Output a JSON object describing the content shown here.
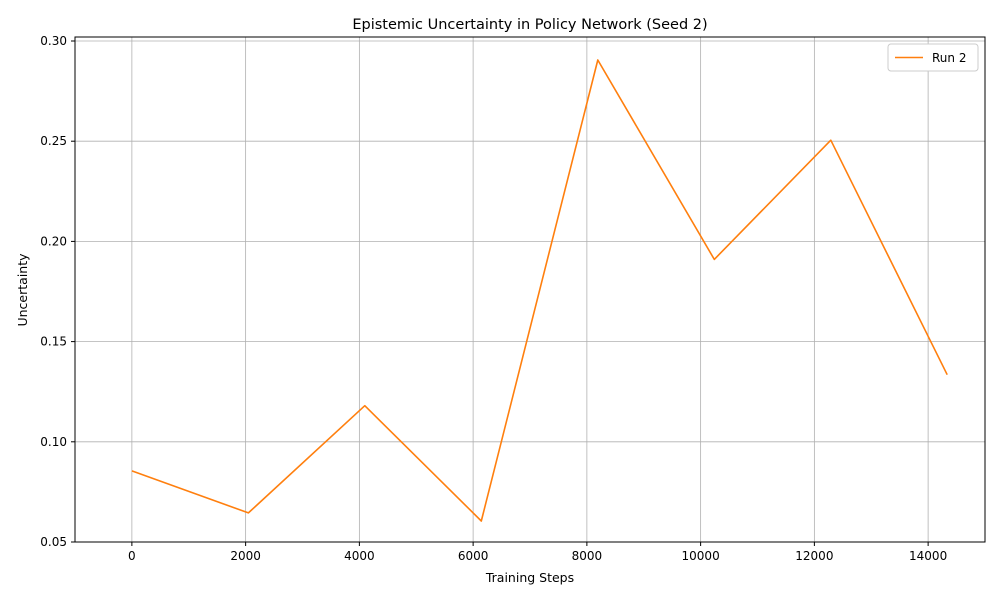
{
  "chart_data": {
    "type": "line",
    "title": "Epistemic Uncertainty in Policy Network (Seed 2)",
    "xlabel": "Training Steps",
    "ylabel": "Uncertainty",
    "xlim": [
      -1000,
      15000
    ],
    "ylim": [
      0.05,
      0.302
    ],
    "xticks": [
      0,
      2000,
      4000,
      6000,
      8000,
      10000,
      12000,
      14000
    ],
    "xtick_labels": [
      "0",
      "2000",
      "4000",
      "6000",
      "8000",
      "10000",
      "12000",
      "14000"
    ],
    "yticks": [
      0.05,
      0.1,
      0.15,
      0.2,
      0.25,
      0.3
    ],
    "ytick_labels": [
      "0.05",
      "0.10",
      "0.15",
      "0.20",
      "0.25",
      "0.30"
    ],
    "grid": true,
    "legend_position": "upper right",
    "series": [
      {
        "name": "Run 2",
        "color": "#ff7f0e",
        "x": [
          0,
          2048,
          4096,
          6144,
          8192,
          10240,
          12288,
          14336
        ],
        "y": [
          0.0855,
          0.0645,
          0.118,
          0.0605,
          0.2905,
          0.191,
          0.2505,
          0.1335
        ]
      }
    ]
  }
}
